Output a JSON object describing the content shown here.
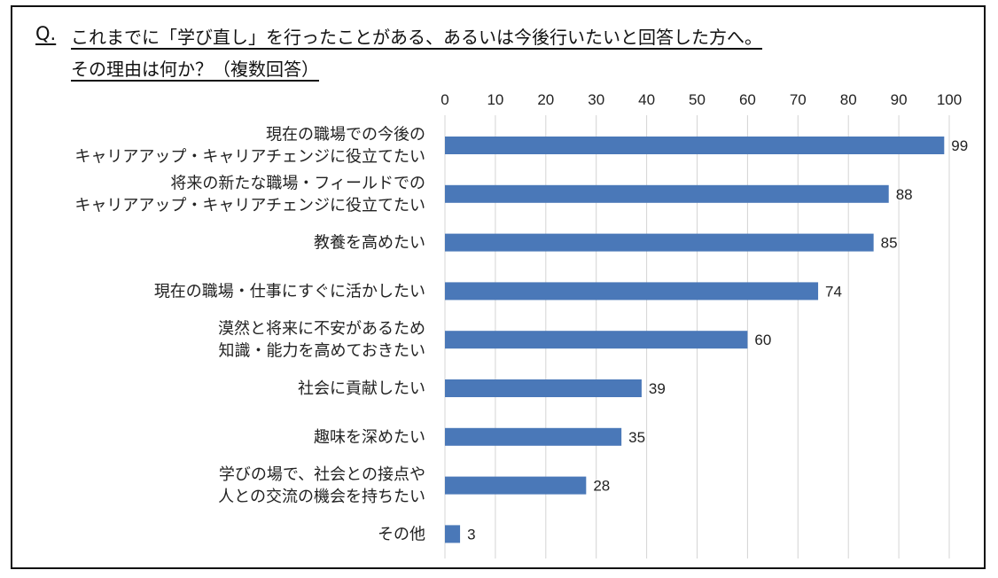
{
  "question": {
    "marker": "Q.",
    "line1": "これまでに「学び直し」を行ったことがある、あるいは今後行いたいと回答した方へ。",
    "line2": "その理由は何か？（複数回答）"
  },
  "chart_data": {
    "type": "bar",
    "orientation": "horizontal",
    "title": "これまでに「学び直し」を行ったことがある、あるいは今後行いたいと回答した方へ。その理由は何か？（複数回答）",
    "xlim": [
      0,
      100
    ],
    "xticks": [
      0,
      10,
      20,
      30,
      40,
      50,
      60,
      70,
      80,
      90,
      100
    ],
    "grid": true,
    "bar_color": "#4a78b8",
    "categories": [
      [
        "現在の職場での今後の",
        "キャリアアップ・キャリアチェンジに役立てたい"
      ],
      [
        "将来の新たな職場・フィールドでの",
        "キャリアアップ・キャリアチェンジに役立てたい"
      ],
      [
        "教養を高めたい"
      ],
      [
        "現在の職場・仕事にすぐに活かしたい"
      ],
      [
        "漠然と将来に不安があるため",
        "知識・能力を高めておきたい"
      ],
      [
        "社会に貢献したい"
      ],
      [
        "趣味を深めたい"
      ],
      [
        "学びの場で、社会との接点や",
        "人との交流の機会を持ちたい"
      ],
      [
        "その他"
      ]
    ],
    "values": [
      99,
      88,
      85,
      74,
      60,
      39,
      35,
      28,
      3
    ]
  }
}
